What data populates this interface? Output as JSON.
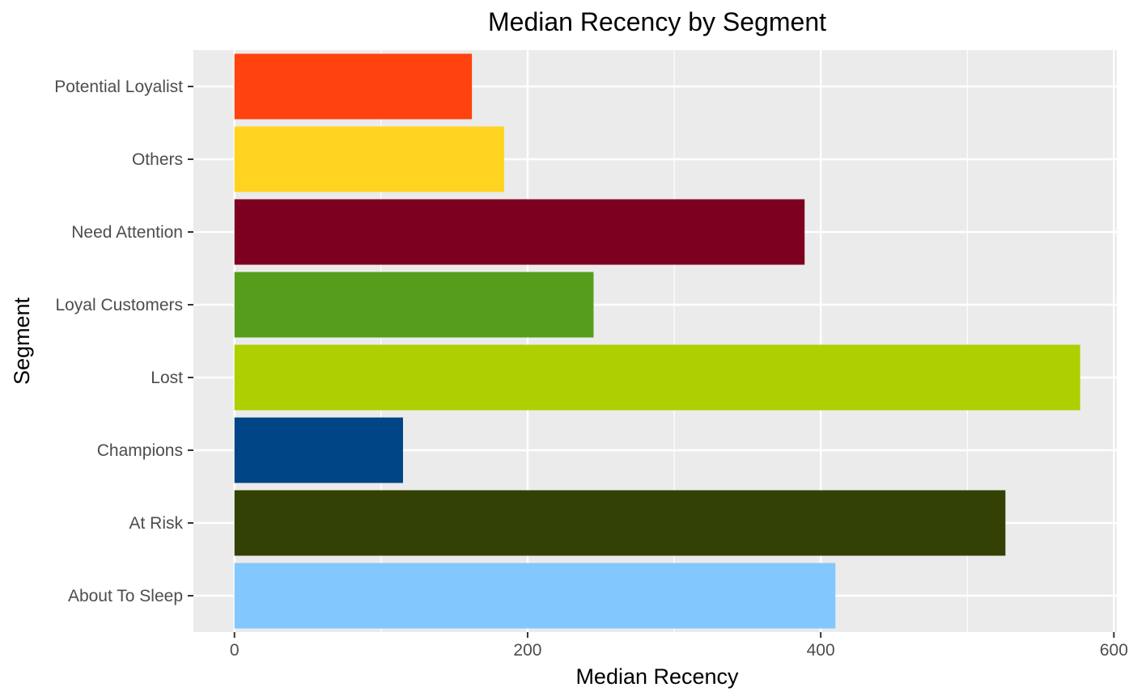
{
  "chart_data": {
    "type": "bar",
    "orientation": "horizontal",
    "title": "Median Recency by Segment",
    "xlabel": "Median Recency",
    "ylabel": "Segment",
    "xlim": [
      -28,
      602
    ],
    "x_ticks": [
      0,
      200,
      400,
      600
    ],
    "x_tick_labels": [
      "0",
      "200",
      "400",
      "600"
    ],
    "grid": true,
    "legend": "none",
    "categories": [
      "About To Sleep",
      "At Risk",
      "Champions",
      "Lost",
      "Loyal Customers",
      "Need Attention",
      "Others",
      "Potential Loyalist"
    ],
    "values": [
      410,
      526,
      115,
      577,
      245,
      389,
      184,
      162
    ],
    "colors": [
      "#82C8FF",
      "#334105",
      "#004586",
      "#AECF00",
      "#579D1C",
      "#7E0021",
      "#FFD320",
      "#FF420E"
    ]
  }
}
